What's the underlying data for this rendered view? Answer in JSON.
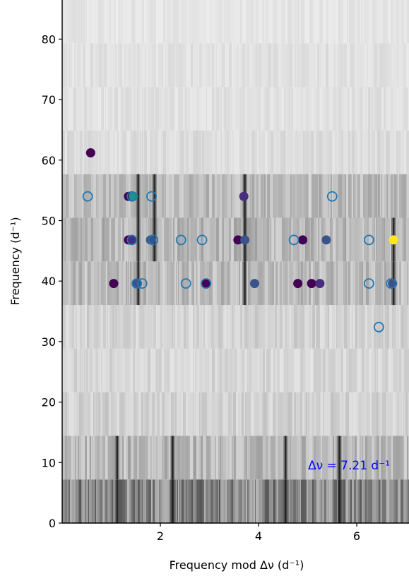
{
  "chart_data": {
    "type": "scatter",
    "title": "",
    "xlabel": "Frequency mod Δν (d⁻¹)",
    "ylabel": "Frequency (d⁻¹)",
    "xlim": [
      0,
      7.21
    ],
    "ylim": [
      0,
      86.5
    ],
    "x_ticks": [
      2,
      4,
      6
    ],
    "x_tick_labels": [
      "2",
      "4",
      "6"
    ],
    "y_ticks": [
      0,
      10,
      20,
      30,
      40,
      50,
      60,
      70,
      80
    ],
    "y_tick_labels": [
      "0",
      "10",
      "20",
      "30",
      "40",
      "50",
      "60",
      "70",
      "80"
    ],
    "grid": false,
    "annotation": {
      "text": "Δν = 7.21 d⁻¹",
      "color": "#0000ff"
    },
    "background": {
      "type": "echelle-grayscale-strips",
      "strip_height": 7.21,
      "strip_count": 12,
      "strip_darkness": [
        0.55,
        0.3,
        0.18,
        0.15,
        0.17,
        0.28,
        0.3,
        0.28,
        0.12,
        0.1,
        0.1,
        0.08
      ],
      "dark_ridges": [
        {
          "x": 1.12,
          "strips": [
            0,
            1
          ]
        },
        {
          "x": 2.25,
          "strips": [
            0,
            1
          ]
        },
        {
          "x": 4.55,
          "strips": [
            0,
            1
          ]
        },
        {
          "x": 5.65,
          "strips": [
            0,
            1
          ]
        },
        {
          "x": 1.55,
          "strips": [
            5,
            6,
            7
          ]
        },
        {
          "x": 1.88,
          "strips": [
            6,
            7
          ]
        },
        {
          "x": 3.72,
          "strips": [
            5,
            6,
            7
          ]
        },
        {
          "x": 6.75,
          "strips": [
            5,
            6
          ]
        }
      ]
    },
    "series": [
      {
        "marker": "filled-circle",
        "points": [
          {
            "x": 0.58,
            "y": 61.2,
            "color": "#440154"
          },
          {
            "x": 1.35,
            "y": 54.0,
            "color": "#440154"
          },
          {
            "x": 1.45,
            "y": 54.0,
            "color": "#21918c"
          },
          {
            "x": 3.7,
            "y": 54.0,
            "color": "#472d7b"
          },
          {
            "x": 1.35,
            "y": 46.8,
            "color": "#440154"
          },
          {
            "x": 1.42,
            "y": 46.8,
            "color": "#472d7b"
          },
          {
            "x": 1.8,
            "y": 46.8,
            "color": "#3b528b"
          },
          {
            "x": 3.58,
            "y": 46.8,
            "color": "#440154"
          },
          {
            "x": 3.72,
            "y": 46.8,
            "color": "#3b528b"
          },
          {
            "x": 4.9,
            "y": 46.8,
            "color": "#440154"
          },
          {
            "x": 5.38,
            "y": 46.8,
            "color": "#3b528b"
          },
          {
            "x": 6.75,
            "y": 46.8,
            "color": "#fde725"
          },
          {
            "x": 1.05,
            "y": 39.6,
            "color": "#440154"
          },
          {
            "x": 1.53,
            "y": 39.6,
            "color": "#3b528b"
          },
          {
            "x": 2.92,
            "y": 39.6,
            "color": "#440154"
          },
          {
            "x": 3.92,
            "y": 39.6,
            "color": "#3b528b"
          },
          {
            "x": 4.8,
            "y": 39.6,
            "color": "#440154"
          },
          {
            "x": 5.08,
            "y": 39.6,
            "color": "#440154"
          },
          {
            "x": 5.25,
            "y": 39.6,
            "color": "#472d7b"
          },
          {
            "x": 6.73,
            "y": 39.6,
            "color": "#3b528b"
          }
        ]
      },
      {
        "marker": "open-circle",
        "color": "#1f77b4",
        "points": [
          {
            "x": 0.52,
            "y": 54.0
          },
          {
            "x": 1.42,
            "y": 54.0
          },
          {
            "x": 1.82,
            "y": 54.0
          },
          {
            "x": 5.5,
            "y": 54.0
          },
          {
            "x": 1.42,
            "y": 46.8
          },
          {
            "x": 1.85,
            "y": 46.8
          },
          {
            "x": 2.42,
            "y": 46.8
          },
          {
            "x": 2.85,
            "y": 46.8
          },
          {
            "x": 4.72,
            "y": 46.8
          },
          {
            "x": 6.25,
            "y": 46.8
          },
          {
            "x": 1.52,
            "y": 39.6
          },
          {
            "x": 1.63,
            "y": 39.6
          },
          {
            "x": 2.52,
            "y": 39.6
          },
          {
            "x": 2.93,
            "y": 39.6
          },
          {
            "x": 6.25,
            "y": 39.6
          },
          {
            "x": 6.7,
            "y": 39.6
          },
          {
            "x": 6.45,
            "y": 32.4
          }
        ]
      }
    ]
  }
}
